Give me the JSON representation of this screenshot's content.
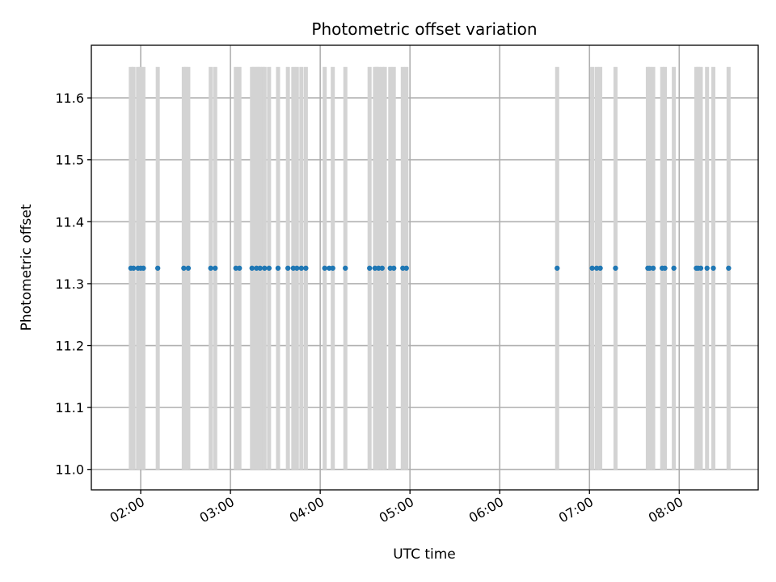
{
  "chart_data": {
    "type": "scatter",
    "title": "Photometric offset variation",
    "xlabel": "UTC time",
    "ylabel": "Photometric offset",
    "x_unit": "UTC time (hours)",
    "xlim": [
      1.45,
      8.88
    ],
    "ylim": [
      10.967,
      11.685
    ],
    "x_ticks": [
      {
        "value": 2,
        "label": "02:00"
      },
      {
        "value": 3,
        "label": "03:00"
      },
      {
        "value": 4,
        "label": "04:00"
      },
      {
        "value": 5,
        "label": "05:00"
      },
      {
        "value": 6,
        "label": "06:00"
      },
      {
        "value": 7,
        "label": "07:00"
      },
      {
        "value": 8,
        "label": "08:00"
      }
    ],
    "y_ticks": [
      {
        "value": 11.0,
        "label": "11.0"
      },
      {
        "value": 11.1,
        "label": "11.1"
      },
      {
        "value": 11.2,
        "label": "11.2"
      },
      {
        "value": 11.3,
        "label": "11.3"
      },
      {
        "value": 11.4,
        "label": "11.4"
      },
      {
        "value": 11.5,
        "label": "11.5"
      },
      {
        "value": 11.6,
        "label": "11.6"
      }
    ],
    "grid": true,
    "series": [
      {
        "marker_color": "#1f77b4",
        "y": 11.325,
        "x": [
          1.89,
          1.92,
          1.97,
          2.0,
          2.03,
          2.19,
          2.48,
          2.53,
          2.78,
          2.83,
          3.06,
          3.1,
          3.24,
          3.29,
          3.33,
          3.38,
          3.43,
          3.53,
          3.64,
          3.7,
          3.74,
          3.79,
          3.84,
          4.05,
          4.1,
          4.14,
          4.28,
          4.55,
          4.61,
          4.65,
          4.69,
          4.78,
          4.82,
          4.92,
          4.96,
          6.64,
          7.03,
          7.08,
          7.12,
          7.29,
          7.65,
          7.67,
          7.71,
          7.81,
          7.84,
          7.94,
          8.19,
          8.21,
          8.24,
          8.31,
          8.38,
          8.55
        ]
      }
    ],
    "bands": {
      "color": "#d3d3d3",
      "y_range": [
        11.0,
        11.65
      ],
      "x": [
        1.89,
        1.92,
        1.97,
        2.0,
        2.03,
        2.19,
        2.48,
        2.5,
        2.53,
        2.78,
        2.83,
        3.06,
        3.1,
        3.24,
        3.26,
        3.29,
        3.31,
        3.33,
        3.36,
        3.38,
        3.43,
        3.53,
        3.64,
        3.7,
        3.74,
        3.79,
        3.84,
        4.05,
        4.14,
        4.28,
        4.55,
        4.61,
        4.63,
        4.65,
        4.69,
        4.72,
        4.78,
        4.82,
        4.92,
        4.96,
        6.64,
        7.03,
        7.08,
        7.12,
        7.29,
        7.65,
        7.67,
        7.71,
        7.81,
        7.84,
        7.94,
        8.19,
        8.21,
        8.24,
        8.31,
        8.38,
        8.55
      ]
    }
  }
}
